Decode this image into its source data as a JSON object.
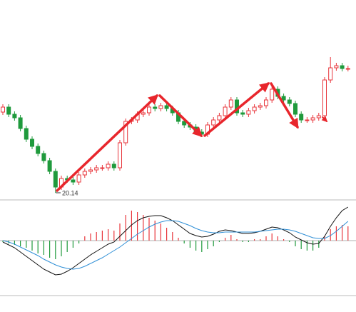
{
  "chart_data": [
    {
      "type": "candlestick",
      "open": [
        22.4,
        22.54,
        22.34,
        22.24,
        21.94,
        21.64,
        21.44,
        21.24,
        21.04,
        20.74,
        20.3,
        20.54,
        20.5,
        20.44,
        20.64,
        20.74,
        20.78,
        20.84,
        20.84,
        20.94,
        20.84,
        21.54,
        22.14,
        22.18,
        22.34,
        22.38,
        22.54,
        22.5,
        22.58,
        22.5,
        22.38,
        22.14,
        22.04,
        21.98,
        21.84,
        21.78,
        22.04,
        22.18,
        22.3,
        22.54,
        22.74,
        22.38,
        22.34,
        22.44,
        22.54,
        22.58,
        22.74,
        23.04,
        22.84,
        22.74,
        22.64,
        22.34,
        22.18,
        22.18,
        22.24,
        22.3,
        23.3,
        23.64,
        23.7,
        23.62
      ],
      "high": [
        22.62,
        22.62,
        22.42,
        22.32,
        22.02,
        21.72,
        21.52,
        21.32,
        21.12,
        20.82,
        20.62,
        20.62,
        20.58,
        20.72,
        20.82,
        20.86,
        20.92,
        20.92,
        21.02,
        21.02,
        21.62,
        22.22,
        22.26,
        22.42,
        22.46,
        22.62,
        22.62,
        22.66,
        22.66,
        22.58,
        22.46,
        22.22,
        22.12,
        22.06,
        21.92,
        22.12,
        22.26,
        22.38,
        22.62,
        22.82,
        22.82,
        22.46,
        22.52,
        22.62,
        22.66,
        22.82,
        23.12,
        23.12,
        22.92,
        22.82,
        22.72,
        22.42,
        22.26,
        22.32,
        22.38,
        23.38,
        23.94,
        23.78,
        23.78,
        23.7
      ],
      "low": [
        22.32,
        22.26,
        22.16,
        21.86,
        21.56,
        21.36,
        21.16,
        20.96,
        20.66,
        20.14,
        20.22,
        20.42,
        20.36,
        20.36,
        20.56,
        20.66,
        20.7,
        20.76,
        20.76,
        20.76,
        20.76,
        21.46,
        22.06,
        22.1,
        22.26,
        22.3,
        22.42,
        22.42,
        22.42,
        22.3,
        22.06,
        21.96,
        21.9,
        21.76,
        21.7,
        21.7,
        21.96,
        22.1,
        22.22,
        22.46,
        22.3,
        22.26,
        22.26,
        22.36,
        22.46,
        22.5,
        22.66,
        22.76,
        22.66,
        22.56,
        22.26,
        22.1,
        22.1,
        22.1,
        22.16,
        22.22,
        23.22,
        23.56,
        23.54,
        23.54
      ],
      "close": [
        22.54,
        22.34,
        22.24,
        21.94,
        21.64,
        21.44,
        21.24,
        21.04,
        20.74,
        20.3,
        20.54,
        20.5,
        20.44,
        20.64,
        20.74,
        20.78,
        20.84,
        20.84,
        20.94,
        20.84,
        21.54,
        22.14,
        22.18,
        22.34,
        22.38,
        22.54,
        22.5,
        22.58,
        22.5,
        22.38,
        22.14,
        22.04,
        21.98,
        21.84,
        21.78,
        22.04,
        22.18,
        22.3,
        22.54,
        22.74,
        22.38,
        22.34,
        22.44,
        22.54,
        22.58,
        22.74,
        23.04,
        22.84,
        22.74,
        22.64,
        22.34,
        22.18,
        22.18,
        22.24,
        22.3,
        23.3,
        23.64,
        23.7,
        23.62,
        23.62
      ],
      "ylim": [
        19.94,
        25.54
      ],
      "up_color": "#e8353b",
      "down_color": "#1f9a3c"
    },
    {
      "type": "macd",
      "values": [
        -0.02,
        -0.04,
        -0.06,
        -0.08,
        -0.1,
        -0.14,
        -0.18,
        -0.2,
        -0.24,
        -0.26,
        -0.22,
        -0.16,
        -0.1,
        -0.04,
        0.06,
        0.1,
        0.12,
        0.14,
        0.16,
        0.14,
        0.24,
        0.36,
        0.42,
        0.4,
        0.36,
        0.32,
        0.28,
        0.24,
        0.18,
        0.12,
        0.04,
        -0.04,
        -0.1,
        -0.14,
        -0.16,
        -0.12,
        -0.08,
        -0.02,
        0.04,
        0.08,
        0.02,
        -0.02,
        -0.02,
        0.02,
        0.02,
        0.06,
        0.1,
        0.06,
        0.02,
        -0.02,
        -0.08,
        -0.12,
        -0.14,
        -0.14,
        -0.1,
        0.06,
        0.16,
        0.2,
        0.22,
        0.2
      ],
      "up_color": "#e8353b",
      "down_color": "#1f9a3c",
      "series": [
        {
          "color": "#111111",
          "values": [
            -0.02,
            -0.06,
            -0.1,
            -0.16,
            -0.22,
            -0.28,
            -0.34,
            -0.4,
            -0.44,
            -0.48,
            -0.47,
            -0.43,
            -0.38,
            -0.32,
            -0.26,
            -0.2,
            -0.15,
            -0.1,
            -0.05,
            -0.02,
            0.06,
            0.14,
            0.22,
            0.28,
            0.32,
            0.34,
            0.35,
            0.35,
            0.32,
            0.28,
            0.22,
            0.16,
            0.1,
            0.07,
            0.05,
            0.06,
            0.09,
            0.13,
            0.15,
            0.14,
            0.12,
            0.1,
            0.1,
            0.11,
            0.13,
            0.16,
            0.19,
            0.18,
            0.15,
            0.11,
            0.05,
            0.01,
            -0.03,
            -0.05,
            -0.04,
            0.06,
            0.2,
            0.32,
            0.42,
            0.47
          ]
        },
        {
          "color": "#2f8fd6",
          "values": [
            0.0,
            -0.02,
            -0.05,
            -0.09,
            -0.13,
            -0.17,
            -0.21,
            -0.26,
            -0.3,
            -0.34,
            -0.37,
            -0.39,
            -0.4,
            -0.39,
            -0.36,
            -0.32,
            -0.28,
            -0.24,
            -0.19,
            -0.14,
            -0.09,
            -0.03,
            0.03,
            0.09,
            0.14,
            0.19,
            0.23,
            0.26,
            0.28,
            0.28,
            0.27,
            0.24,
            0.21,
            0.17,
            0.14,
            0.12,
            0.11,
            0.11,
            0.12,
            0.12,
            0.12,
            0.12,
            0.12,
            0.12,
            0.13,
            0.14,
            0.15,
            0.16,
            0.16,
            0.15,
            0.13,
            0.1,
            0.07,
            0.04,
            0.03,
            0.03,
            0.07,
            0.13,
            0.2,
            0.27
          ]
        }
      ],
      "ylim": [
        -0.63,
        0.55
      ]
    }
  ]
}
